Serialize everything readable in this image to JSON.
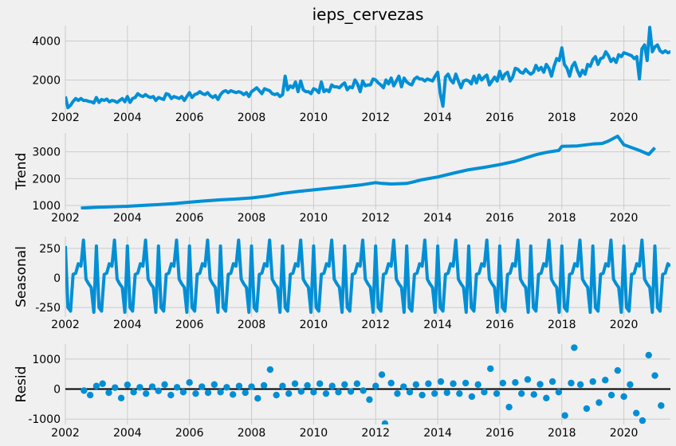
{
  "chart_data": [
    {
      "type": "line",
      "title": "ieps_cervezas",
      "ylabel": "",
      "xlim": [
        2002,
        2021.5
      ],
      "ylim": [
        300,
        4800
      ],
      "xticks": [
        2002,
        2004,
        2006,
        2008,
        2010,
        2012,
        2014,
        2016,
        2018,
        2020
      ],
      "yticks": [
        2000,
        4000
      ],
      "grid": true,
      "series": [
        {
          "x_start": 2002.0,
          "x_step": 0.0833333,
          "values": [
            1150,
            580,
            700,
            900,
            1050,
            950,
            1050,
            950,
            950,
            900,
            880,
            820,
            1100,
            850,
            1000,
            950,
            1020,
            880,
            950,
            920,
            850,
            950,
            1050,
            880,
            1150,
            850,
            1050,
            1100,
            1300,
            1200,
            1150,
            1250,
            1150,
            1100,
            1150,
            950,
            1100,
            1050,
            1000,
            1300,
            1250,
            1050,
            1150,
            1100,
            1050,
            1150,
            950,
            1150,
            1350,
            1100,
            1250,
            1300,
            1400,
            1300,
            1250,
            1350,
            1200,
            1100,
            1200,
            1000,
            1250,
            1400,
            1450,
            1350,
            1450,
            1400,
            1350,
            1400,
            1350,
            1250,
            1350,
            1150,
            1400,
            1500,
            1600,
            1450,
            1300,
            1550,
            1500,
            1450,
            1300,
            1250,
            1300,
            1150,
            1250,
            2200,
            1500,
            1700,
            1600,
            1900,
            1400,
            1950,
            1500,
            1400,
            1400,
            1300,
            1550,
            1500,
            1350,
            1900,
            1400,
            1500,
            1400,
            1750,
            1650,
            1650,
            1600,
            1750,
            1850,
            1500,
            1650,
            1600,
            2000,
            1800,
            1400,
            1950,
            1700,
            1750,
            1750,
            2050,
            2000,
            1850,
            1750,
            1600,
            2000,
            1800,
            2100,
            1700,
            1950,
            2200,
            1650,
            2100,
            1900,
            1800,
            1750,
            2050,
            2150,
            2050,
            2050,
            1950,
            2050,
            2000,
            1950,
            2200,
            2400,
            1300,
            650,
            2150,
            2300,
            2000,
            1850,
            2300,
            1950,
            1600,
            1950,
            2000,
            1950,
            1800,
            2200,
            1850,
            2250,
            2000,
            2150,
            2250,
            1750,
            1950,
            2150,
            1950,
            2450,
            2050,
            2300,
            2400,
            1950,
            2150,
            2600,
            2550,
            2400,
            2350,
            2550,
            2400,
            2300,
            2400,
            2750,
            2500,
            2650,
            2400,
            2800,
            2600,
            2200,
            2700,
            3100,
            3000,
            3650,
            2800,
            2600,
            2200,
            2700,
            2900,
            2500,
            2200,
            2500,
            2300,
            2800,
            2700,
            3050,
            3200,
            2800,
            3100,
            3150,
            3450,
            3250,
            2950,
            3100,
            2900,
            3300,
            3200,
            3400,
            3350,
            3300,
            3250,
            3100,
            3200,
            2050,
            3600,
            3800,
            3000,
            4700,
            3450,
            3700,
            3800,
            3500,
            3400,
            3500,
            3400,
            3450,
            3350,
            3300,
            3200,
            2300,
            3400,
            3300,
            3500,
            3300,
            3900,
            2800,
            3600,
            3850,
            3400,
            4150,
            4200,
            4100,
            3500,
            3900,
            3700,
            3500,
            2700,
            2450,
            2050,
            2000,
            2800,
            3500,
            4400,
            3800,
            3300,
            3100,
            2800,
            3400,
            3800,
            3000,
            2500,
            3800,
            3900,
            3500,
            3700,
            3550
          ]
        }
      ]
    },
    {
      "type": "line",
      "title": "",
      "ylabel": "Trend",
      "xlim": [
        2002,
        2021.5
      ],
      "ylim": [
        850,
        3700
      ],
      "xticks": [
        2002,
        2004,
        2006,
        2008,
        2010,
        2012,
        2014,
        2016,
        2018,
        2020
      ],
      "yticks": [
        1000,
        2000,
        3000
      ],
      "grid": true,
      "series": [
        {
          "x": [
            2002.5,
            2003,
            2003.5,
            2004,
            2004.5,
            2005,
            2005.5,
            2006,
            2006.5,
            2007,
            2007.5,
            2008,
            2008.5,
            2009,
            2009.5,
            2010,
            2010.5,
            2011,
            2011.5,
            2012,
            2012.2,
            2012.5,
            2013,
            2013.2,
            2013.5,
            2014,
            2014.5,
            2015,
            2015.5,
            2016,
            2016.5,
            2017,
            2017.2,
            2017.5,
            2017.9,
            2018,
            2018.5,
            2019,
            2019.3,
            2019.5,
            2019.8,
            2020,
            2020.5,
            2020.8,
            2021.0
          ],
          "values": [
            900,
            930,
            950,
            970,
            1000,
            1030,
            1070,
            1120,
            1170,
            1210,
            1240,
            1280,
            1350,
            1450,
            1520,
            1580,
            1640,
            1700,
            1760,
            1850,
            1820,
            1800,
            1820,
            1870,
            1960,
            2060,
            2200,
            2330,
            2420,
            2520,
            2650,
            2830,
            2900,
            2980,
            3050,
            3200,
            3220,
            3290,
            3310,
            3400,
            3580,
            3260,
            3050,
            2900,
            3150
          ]
        }
      ]
    },
    {
      "type": "line",
      "title": "",
      "ylabel": "Seasonal",
      "xlim": [
        2002,
        2021.5
      ],
      "ylim": [
        -330,
        350
      ],
      "xticks": [
        2002,
        2004,
        2006,
        2008,
        2010,
        2012,
        2014,
        2016,
        2018,
        2020
      ],
      "yticks": [
        -250,
        0,
        250
      ],
      "grid": true,
      "series": [
        {
          "pattern_start": 2002.0,
          "pattern_step": 0.0833333,
          "pattern": [
            270,
            -250,
            -280,
            30,
            40,
            120,
            100,
            320,
            -10,
            -50,
            -80,
            -290
          ],
          "repeat_until": 2021.5
        }
      ]
    },
    {
      "type": "scatter",
      "title": "",
      "ylabel": "Resid",
      "xlim": [
        2002,
        2021.5
      ],
      "ylim": [
        -1180,
        1500
      ],
      "xticks": [
        2002,
        2004,
        2006,
        2008,
        2010,
        2012,
        2014,
        2016,
        2018,
        2020
      ],
      "yticks": [
        -1000,
        0,
        1000
      ],
      "grid": true,
      "baseline": 0,
      "series": [
        {
          "x": [
            2002.6,
            2002.8,
            2003.0,
            2003.2,
            2003.4,
            2003.6,
            2003.8,
            2004.0,
            2004.2,
            2004.4,
            2004.6,
            2004.8,
            2005.0,
            2005.2,
            2005.4,
            2005.6,
            2005.8,
            2006.0,
            2006.2,
            2006.4,
            2006.6,
            2006.8,
            2007.0,
            2007.2,
            2007.4,
            2007.6,
            2007.8,
            2008.0,
            2008.2,
            2008.4,
            2008.6,
            2008.8,
            2009.0,
            2009.2,
            2009.4,
            2009.6,
            2009.8,
            2010.0,
            2010.2,
            2010.4,
            2010.6,
            2010.8,
            2011.0,
            2011.2,
            2011.4,
            2011.6,
            2011.8,
            2012.0,
            2012.2,
            2012.3,
            2012.5,
            2012.7,
            2012.9,
            2013.1,
            2013.3,
            2013.5,
            2013.7,
            2013.9,
            2014.1,
            2014.3,
            2014.5,
            2014.7,
            2014.9,
            2015.1,
            2015.3,
            2015.5,
            2015.7,
            2015.9,
            2016.1,
            2016.3,
            2016.5,
            2016.7,
            2016.9,
            2017.1,
            2017.3,
            2017.5,
            2017.7,
            2017.9,
            2018.1,
            2018.3,
            2018.4,
            2018.6,
            2018.8,
            2019.0,
            2019.2,
            2019.4,
            2019.6,
            2019.8,
            2020.0,
            2020.2,
            2020.4,
            2020.6,
            2020.8,
            2021.0,
            2021.2
          ],
          "values": [
            -50,
            -200,
            100,
            180,
            -120,
            50,
            -300,
            140,
            -100,
            60,
            -150,
            80,
            -60,
            150,
            -200,
            60,
            -100,
            220,
            -150,
            80,
            -120,
            150,
            -100,
            60,
            -180,
            100,
            -120,
            80,
            -310,
            120,
            650,
            -200,
            100,
            -150,
            180,
            -80,
            120,
            -100,
            180,
            -150,
            100,
            -100,
            150,
            -80,
            180,
            -50,
            -350,
            100,
            480,
            -1150,
            200,
            -150,
            80,
            -100,
            150,
            -200,
            180,
            -150,
            250,
            -120,
            180,
            -150,
            200,
            -250,
            150,
            -100,
            680,
            -150,
            200,
            -600,
            220,
            -150,
            320,
            -180,
            160,
            -300,
            250,
            -100,
            -880,
            200,
            1380,
            150,
            -650,
            250,
            -450,
            300,
            -200,
            620,
            -250,
            150,
            -800,
            -1050,
            1130,
            450,
            -550
          ]
        }
      ]
    }
  ]
}
